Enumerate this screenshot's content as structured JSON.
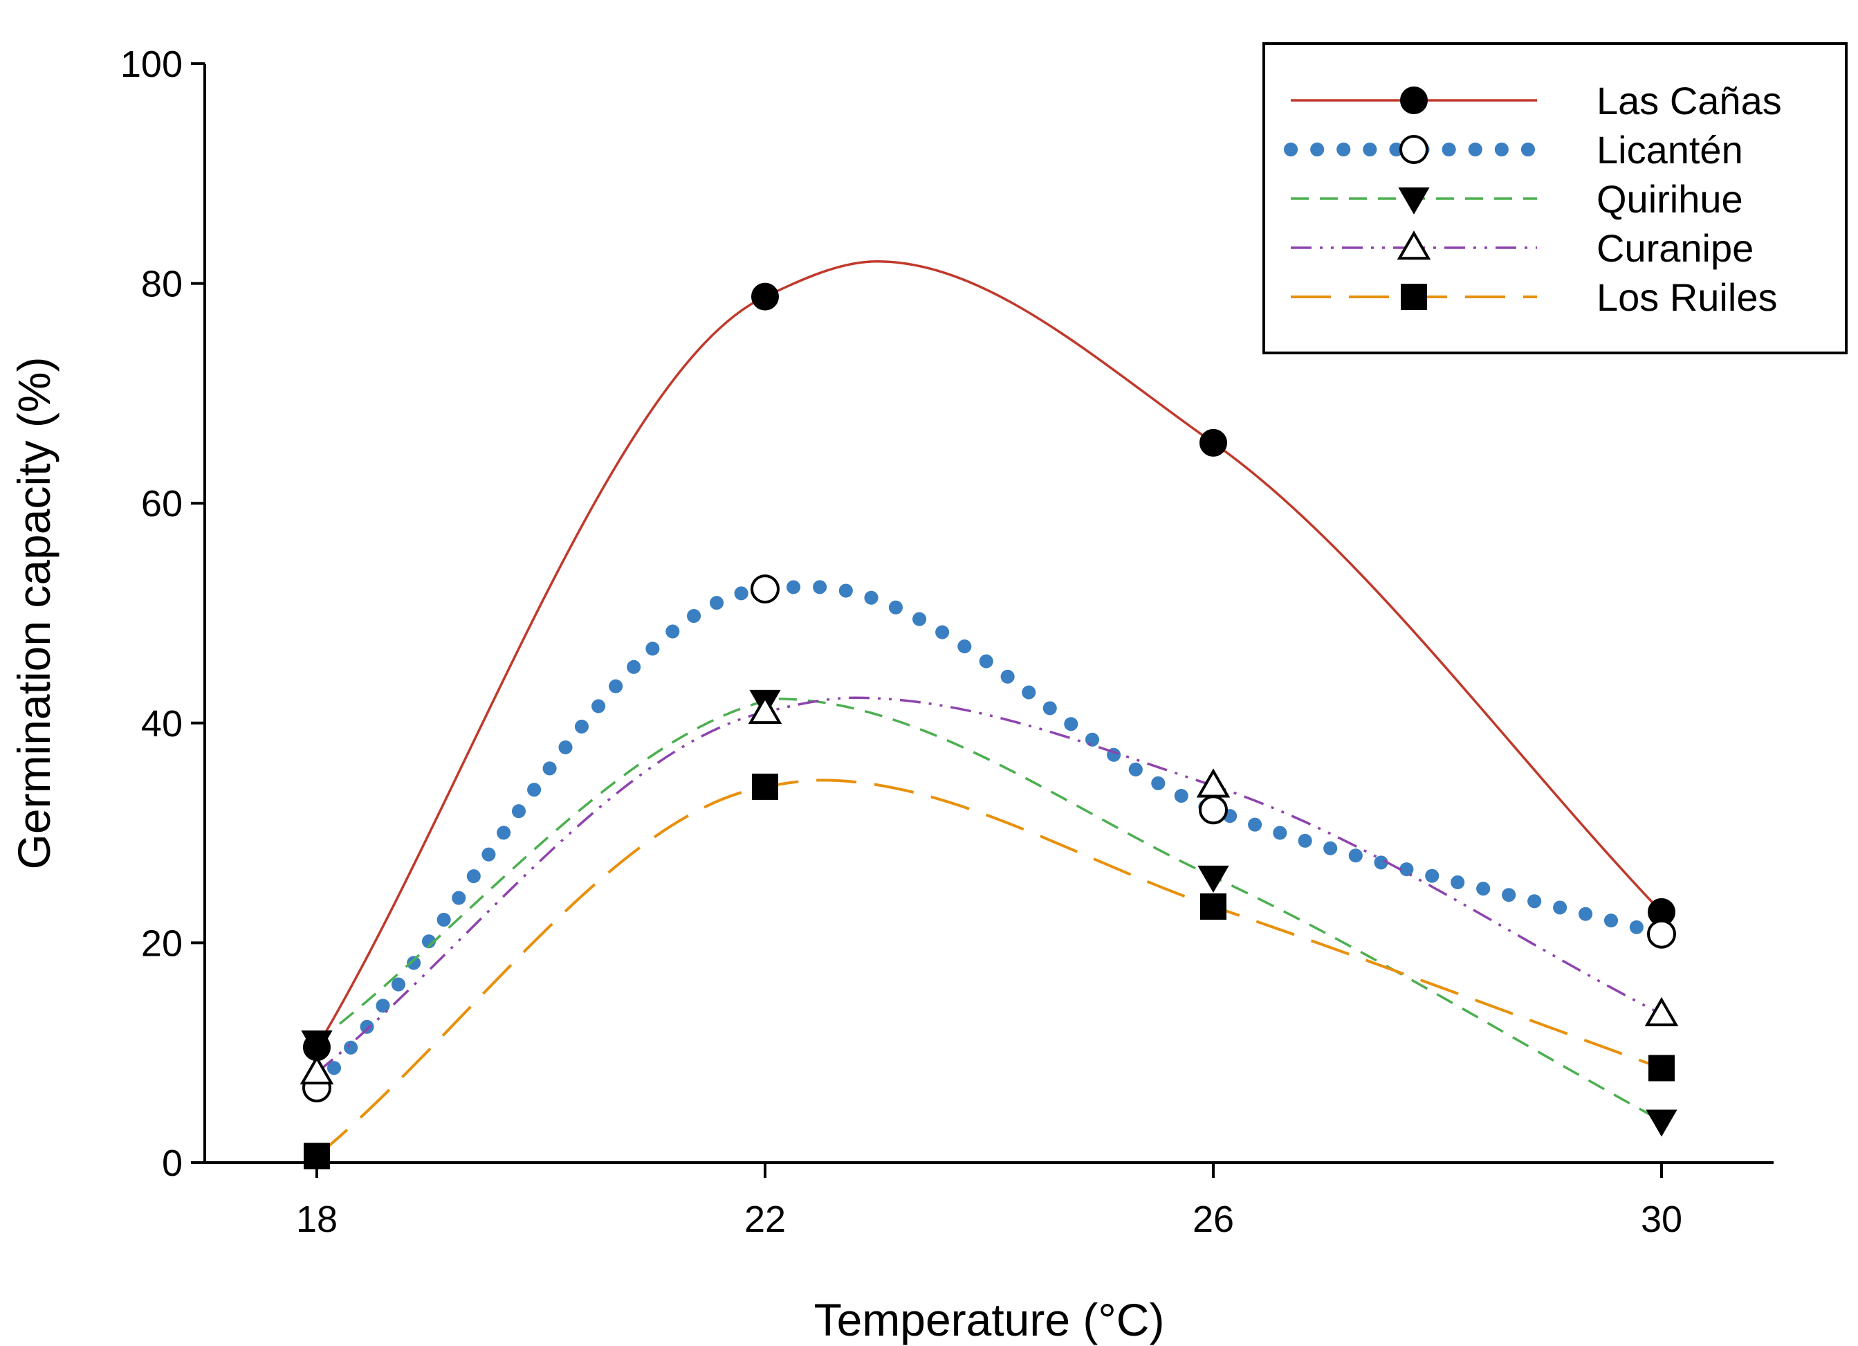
{
  "chart_data": {
    "type": "line",
    "xlabel": "Temperature (°C)",
    "ylabel": "Germination capacity (%)",
    "x": [
      18,
      22,
      26,
      30
    ],
    "xticks": [
      18,
      22,
      26,
      30
    ],
    "xlim": [
      17,
      31
    ],
    "yticks": [
      0,
      20,
      40,
      60,
      80,
      100
    ],
    "ylim": [
      0,
      100
    ],
    "grid": false,
    "legend_position": "top-right",
    "series": [
      {
        "name": "Las Cañas",
        "values": [
          10.5,
          78.8,
          65.5,
          22.8
        ],
        "color": "#c0392b",
        "line_style": "solid",
        "marker": "filled-circle",
        "curve_peak": [
          23.0,
          82.0
        ]
      },
      {
        "name": "Licantén",
        "values": [
          6.8,
          52.2,
          32.1,
          20.8
        ],
        "color": "#3a7fc1",
        "line_style": "dotted-heavy",
        "marker": "open-circle",
        "curve_peak": [
          22.4,
          52.4
        ]
      },
      {
        "name": "Quirihue",
        "values": [
          11.0,
          42.0,
          26.0,
          3.8
        ],
        "color": "#4caf50",
        "line_style": "dashed",
        "marker": "filled-triangle-down",
        "curve_peak": [
          22.1,
          42.2
        ]
      },
      {
        "name": "Curanipe",
        "values": [
          8.2,
          41.0,
          34.3,
          13.5
        ],
        "color": "#8e44ad",
        "line_style": "dash-dot-dot",
        "marker": "open-triangle-up",
        "curve_peak": [
          22.8,
          42.3
        ]
      },
      {
        "name": "Los Ruiles",
        "values": [
          0.6,
          34.2,
          23.3,
          8.6
        ],
        "color": "#e8900c",
        "line_style": "long-dash",
        "marker": "filled-square",
        "curve_peak": [
          22.5,
          34.8
        ]
      }
    ]
  }
}
